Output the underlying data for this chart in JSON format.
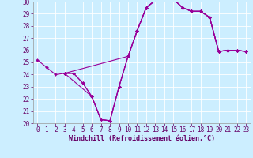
{
  "xlabel": "Windchill (Refroidissement éolien,°C)",
  "background_color": "#cceeff",
  "grid_color": "#aaddcc",
  "line_color": "#990099",
  "xlim": [
    -0.5,
    23.5
  ],
  "ylim": [
    20,
    30
  ],
  "yticks": [
    20,
    21,
    22,
    23,
    24,
    25,
    26,
    27,
    28,
    29,
    30
  ],
  "xticks": [
    0,
    1,
    2,
    3,
    4,
    5,
    6,
    7,
    8,
    9,
    10,
    11,
    12,
    13,
    14,
    15,
    16,
    17,
    18,
    19,
    20,
    21,
    22,
    23
  ],
  "tick_fontsize": 5.5,
  "xlabel_fontsize": 6.0,
  "lines": [
    {
      "x": [
        0,
        1,
        2,
        3,
        4,
        5,
        6,
        7,
        8,
        9,
        10,
        11,
        12,
        13,
        14,
        15,
        16,
        17,
        18,
        19,
        20,
        21,
        22,
        23
      ],
      "y": [
        25.2,
        24.6,
        24.0,
        24.1,
        24.1,
        23.3,
        22.2,
        20.3,
        20.2,
        23.0,
        25.5,
        27.6,
        29.5,
        30.1,
        30.1,
        30.2,
        29.5,
        29.2,
        29.2,
        28.7,
        25.9,
        26.0,
        26.0,
        25.9
      ]
    },
    {
      "x": [
        3,
        10,
        11,
        12,
        13,
        14,
        15,
        16,
        17,
        18,
        19,
        20,
        21,
        22,
        23
      ],
      "y": [
        24.1,
        25.5,
        27.6,
        29.5,
        30.1,
        30.1,
        30.2,
        29.5,
        29.2,
        29.2,
        28.7,
        25.9,
        26.0,
        26.0,
        25.9
      ]
    },
    {
      "x": [
        3,
        6,
        7,
        8,
        9,
        10,
        11,
        12,
        13,
        14,
        15,
        16,
        17,
        18,
        19,
        20,
        21,
        22,
        23
      ],
      "y": [
        24.1,
        22.2,
        20.3,
        20.2,
        23.0,
        25.5,
        27.6,
        29.5,
        30.1,
        30.1,
        30.2,
        29.5,
        29.2,
        29.2,
        28.7,
        25.9,
        26.0,
        26.0,
        25.9
      ]
    },
    {
      "x": [
        3,
        4,
        5,
        6,
        7,
        8,
        9,
        10,
        11,
        12,
        13,
        14,
        15,
        16,
        17,
        18,
        19,
        20,
        21,
        22,
        23
      ],
      "y": [
        24.1,
        24.1,
        23.3,
        22.2,
        20.3,
        20.2,
        23.0,
        25.5,
        27.6,
        29.5,
        30.1,
        30.1,
        30.2,
        29.5,
        29.2,
        29.2,
        28.7,
        25.9,
        26.0,
        26.0,
        25.9
      ]
    }
  ]
}
